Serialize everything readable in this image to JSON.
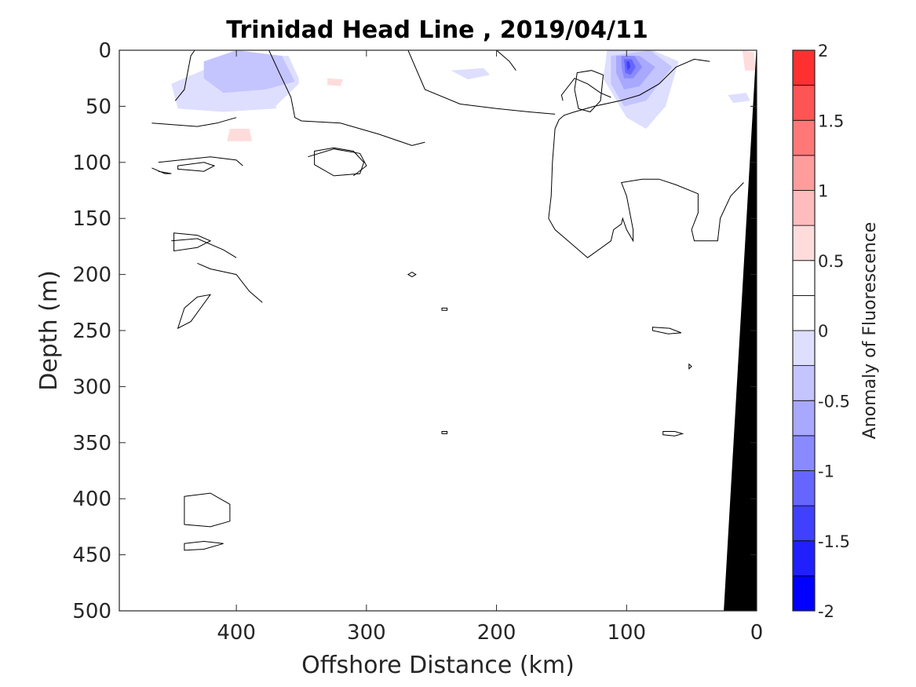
{
  "chart_data": {
    "type": "heatmap",
    "title": "Trinidad Head Line , 2019/04/11",
    "xlabel": "Offshore Distance (km)",
    "ylabel": "Depth (m)",
    "xlim": [
      490,
      0
    ],
    "ylim": [
      0,
      500
    ],
    "x_reversed": true,
    "y_reversed": true,
    "xticks": [
      400,
      300,
      200,
      100,
      0
    ],
    "yticks": [
      0,
      50,
      100,
      150,
      200,
      250,
      300,
      350,
      400,
      450,
      500
    ],
    "colorbar": {
      "label": "Anomaly of Fluorescence",
      "levels": [
        -2,
        -1.75,
        -1.5,
        -1.25,
        -1,
        -0.75,
        -0.5,
        -0.25,
        0,
        0.25,
        0.5,
        0.75,
        1,
        1.25,
        1.5,
        1.75,
        2
      ],
      "tick_values": [
        2,
        1.5,
        1,
        0.5,
        0,
        -0.5,
        -1,
        -1.5,
        -2
      ],
      "tick_labels": [
        "2",
        "1.5",
        "1",
        "0.5",
        "0",
        "-0.5",
        "-1",
        "-1.5",
        "-2"
      ],
      "colors": [
        "#0000ff",
        "#2020ff",
        "#4040ff",
        "#6666ff",
        "#8a8aff",
        "#a8a8ff",
        "#c4c4ff",
        "#dedeff",
        "#ffffff",
        "#ffffff",
        "#ffdcdc",
        "#ffbcbc",
        "#ff9c9c",
        "#ff7878",
        "#ff5454",
        "#ff3030",
        "#ff0000"
      ]
    },
    "filled_regions": [
      {
        "level": -0.25,
        "points": [
          [
            450,
            30
          ],
          [
            400,
            5
          ],
          [
            360,
            5
          ],
          [
            350,
            30
          ],
          [
            370,
            52
          ],
          [
            410,
            55
          ],
          [
            445,
            52
          ]
        ]
      },
      {
        "level": -0.5,
        "points": [
          [
            425,
            10
          ],
          [
            400,
            0
          ],
          [
            365,
            5
          ],
          [
            355,
            28
          ],
          [
            378,
            35
          ],
          [
            410,
            38
          ],
          [
            425,
            25
          ]
        ]
      },
      {
        "level": 0.25,
        "points": [
          [
            352,
            0
          ],
          [
            285,
            0
          ],
          [
            275,
            25
          ],
          [
            290,
            52
          ],
          [
            305,
            65
          ],
          [
            262,
            70
          ],
          [
            275,
            82
          ],
          [
            310,
            85
          ],
          [
            335,
            75
          ],
          [
            355,
            60
          ],
          [
            370,
            50
          ],
          [
            352,
            30
          ]
        ]
      },
      {
        "level": 0.5,
        "points": [
          [
            405,
            70
          ],
          [
            390,
            70
          ],
          [
            388,
            81
          ],
          [
            407,
            81
          ]
        ]
      },
      {
        "level": 0.5,
        "points": [
          [
            330,
            25
          ],
          [
            318,
            26
          ],
          [
            320,
            32
          ],
          [
            330,
            31
          ]
        ]
      },
      {
        "level": -0.25,
        "points": [
          [
            235,
            18
          ],
          [
            210,
            16
          ],
          [
            205,
            22
          ],
          [
            222,
            26
          ]
        ]
      },
      {
        "level": -0.25,
        "points": [
          [
            115,
            0
          ],
          [
            80,
            0
          ],
          [
            60,
            10
          ],
          [
            70,
            50
          ],
          [
            85,
            70
          ],
          [
            100,
            60
          ],
          [
            118,
            25
          ]
        ]
      },
      {
        "level": -0.5,
        "points": [
          [
            112,
            5
          ],
          [
            82,
            0
          ],
          [
            65,
            15
          ],
          [
            85,
            45
          ],
          [
            102,
            50
          ],
          [
            112,
            30
          ]
        ]
      },
      {
        "level": -0.75,
        "points": [
          [
            108,
            5
          ],
          [
            90,
            5
          ],
          [
            78,
            15
          ],
          [
            90,
            32
          ],
          [
            102,
            35
          ],
          [
            108,
            20
          ]
        ]
      },
      {
        "level": -1.0,
        "points": [
          [
            104,
            5
          ],
          [
            94,
            5
          ],
          [
            88,
            15
          ],
          [
            95,
            25
          ],
          [
            102,
            25
          ],
          [
            104,
            15
          ]
        ]
      },
      {
        "level": -1.25,
        "points": [
          [
            102,
            8
          ],
          [
            96,
            8
          ],
          [
            93,
            15
          ],
          [
            97,
            22
          ],
          [
            101,
            20
          ]
        ]
      },
      {
        "level": -1.5,
        "points": [
          [
            100,
            10
          ],
          [
            98,
            10
          ],
          [
            97,
            15
          ],
          [
            99,
            18
          ],
          [
            100,
            14
          ]
        ]
      },
      {
        "level": 0.25,
        "points": [
          [
            16,
            0
          ],
          [
            1,
            0
          ],
          [
            0,
            25
          ],
          [
            7,
            28
          ],
          [
            18,
            18
          ]
        ]
      },
      {
        "level": 0.5,
        "points": [
          [
            11,
            0
          ],
          [
            2,
            2
          ],
          [
            1,
            18
          ],
          [
            9,
            18
          ]
        ]
      },
      {
        "level": -0.25,
        "points": [
          [
            22,
            40
          ],
          [
            8,
            38
          ],
          [
            5,
            45
          ],
          [
            18,
            47
          ]
        ]
      }
    ],
    "zero_contours": [
      [
        [
          447,
          45
        ],
        [
          440,
          35
        ],
        [
          435,
          5
        ],
        [
          432,
          0
        ]
      ],
      [
        [
          375,
          0
        ],
        [
          367,
          20
        ],
        [
          358,
          42
        ],
        [
          355,
          60
        ],
        [
          350,
          63
        ],
        [
          320,
          65
        ],
        [
          290,
          75
        ],
        [
          265,
          85
        ],
        [
          255,
          82
        ]
      ],
      [
        [
          278,
          0
        ],
        [
          268,
          0
        ],
        [
          255,
          35
        ],
        [
          228,
          48
        ],
        [
          200,
          52
        ],
        [
          175,
          55
        ],
        [
          155,
          57
        ]
      ],
      [
        [
          200,
          0
        ],
        [
          190,
          10
        ],
        [
          185,
          18
        ]
      ],
      [
        [
          149,
          45
        ],
        [
          150,
          40
        ],
        [
          140,
          25
        ],
        [
          130,
          30
        ],
        [
          120,
          38
        ],
        [
          112,
          42
        ]
      ],
      [
        [
          36,
          10
        ],
        [
          48,
          8
        ],
        [
          62,
          15
        ],
        [
          75,
          30
        ],
        [
          90,
          40
        ],
        [
          105,
          45
        ],
        [
          125,
          50
        ],
        [
          140,
          55
        ],
        [
          148,
          58
        ],
        [
          152,
          62
        ],
        [
          155,
          70
        ]
      ],
      [
        [
          155,
          70
        ],
        [
          157,
          100
        ],
        [
          158,
          130
        ],
        [
          160,
          150
        ],
        [
          155,
          160
        ],
        [
          145,
          170
        ],
        [
          130,
          185
        ],
        [
          112,
          170
        ],
        [
          110,
          160
        ],
        [
          104,
          155
        ],
        [
          103,
          150
        ],
        [
          100,
          160
        ],
        [
          95,
          170
        ],
        [
          95,
          160
        ],
        [
          100,
          130
        ],
        [
          104,
          118
        ],
        [
          88,
          115
        ],
        [
          75,
          115
        ],
        [
          62,
          120
        ],
        [
          45,
          128
        ],
        [
          45,
          145
        ],
        [
          50,
          160
        ],
        [
          48,
          170
        ],
        [
          30,
          170
        ],
        [
          28,
          150
        ],
        [
          20,
          130
        ],
        [
          10,
          118
        ]
      ],
      [
        [
          430,
          190
        ],
        [
          420,
          195
        ],
        [
          400,
          200
        ],
        [
          390,
          215
        ],
        [
          380,
          225
        ]
      ],
      [
        [
          460,
          100
        ],
        [
          420,
          95
        ],
        [
          400,
          98
        ],
        [
          395,
          103
        ]
      ],
      [
        [
          465,
          105
        ],
        [
          455,
          110
        ],
        [
          450,
          110
        ],
        [
          460,
          108
        ]
      ],
      [
        [
          345,
          95
        ],
        [
          325,
          88
        ],
        [
          305,
          92
        ],
        [
          300,
          103
        ],
        [
          310,
          112
        ]
      ],
      [
        [
          450,
          170
        ],
        [
          430,
          168
        ],
        [
          410,
          178
        ],
        [
          400,
          185
        ]
      ],
      [
        [
          465,
          65
        ],
        [
          430,
          68
        ],
        [
          415,
          65
        ],
        [
          400,
          60
        ]
      ]
    ],
    "closed_contours": [
      [
        [
          138,
          20
        ],
        [
          127,
          18
        ],
        [
          118,
          22
        ],
        [
          120,
          45
        ],
        [
          128,
          55
        ],
        [
          137,
          52
        ],
        [
          140,
          35
        ]
      ],
      [
        [
          340,
          90
        ],
        [
          325,
          87
        ],
        [
          310,
          90
        ],
        [
          302,
          100
        ],
        [
          305,
          110
        ],
        [
          325,
          112
        ],
        [
          340,
          102
        ]
      ],
      [
        [
          445,
          103
        ],
        [
          425,
          100
        ],
        [
          417,
          103
        ],
        [
          425,
          108
        ],
        [
          445,
          106
        ]
      ],
      [
        [
          448,
          163
        ],
        [
          430,
          165
        ],
        [
          420,
          170
        ],
        [
          430,
          176
        ],
        [
          448,
          179
        ]
      ],
      [
        [
          265,
          198
        ],
        [
          262,
          200
        ],
        [
          265,
          202
        ],
        [
          268,
          200
        ]
      ],
      [
        [
          80,
          247
        ],
        [
          67,
          248
        ],
        [
          58,
          252
        ],
        [
          68,
          253
        ],
        [
          80,
          250
        ]
      ],
      [
        [
          52,
          280
        ],
        [
          50,
          282
        ],
        [
          52,
          284
        ]
      ],
      [
        [
          242,
          230
        ],
        [
          238,
          230
        ],
        [
          238,
          232
        ],
        [
          242,
          232
        ]
      ],
      [
        [
          242,
          340
        ],
        [
          238,
          340
        ],
        [
          238,
          342
        ],
        [
          242,
          342
        ]
      ],
      [
        [
          72,
          340
        ],
        [
          63,
          340
        ],
        [
          57,
          342
        ],
        [
          63,
          344
        ],
        [
          72,
          343
        ]
      ],
      [
        [
          440,
          398
        ],
        [
          420,
          395
        ],
        [
          405,
          405
        ],
        [
          405,
          420
        ],
        [
          420,
          425
        ],
        [
          440,
          423
        ]
      ],
      [
        [
          440,
          440
        ],
        [
          425,
          438
        ],
        [
          410,
          440
        ],
        [
          425,
          445
        ],
        [
          440,
          446
        ]
      ],
      [
        [
          440,
          230
        ],
        [
          430,
          220
        ],
        [
          420,
          218
        ],
        [
          435,
          242
        ],
        [
          445,
          248
        ]
      ]
    ],
    "land_region": [
      [
        0,
        0
      ],
      [
        25,
        500
      ],
      [
        0,
        500
      ]
    ]
  }
}
